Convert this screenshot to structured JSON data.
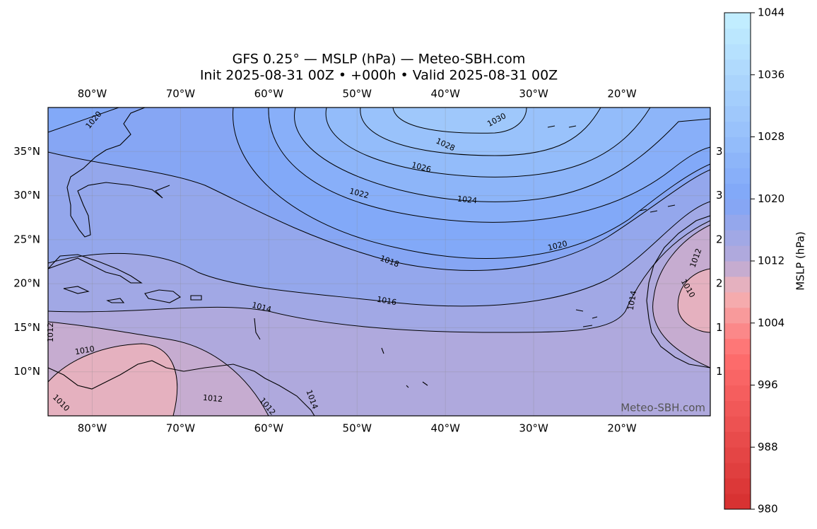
{
  "map": {
    "title": "GFS 0.25° — MSLP (hPa) — Meteo-SBH.com",
    "subtitle": "Init 2025-08-31 00Z • +000h • Valid 2025-08-31 00Z",
    "lonlim": [
      -85,
      -10
    ],
    "latlim": [
      5,
      40
    ],
    "lonticks": [
      {
        "value": -80,
        "label": "80°W"
      },
      {
        "value": -70,
        "label": "70°W"
      },
      {
        "value": -60,
        "label": "60°W"
      },
      {
        "value": -50,
        "label": "50°W"
      },
      {
        "value": -40,
        "label": "40°W"
      },
      {
        "value": -30,
        "label": "30°W"
      },
      {
        "value": -20,
        "label": "20°W"
      }
    ],
    "latticks": [
      {
        "value": 10,
        "label": "10°N"
      },
      {
        "value": 15,
        "label": "15°N"
      },
      {
        "value": 20,
        "label": "20°N"
      },
      {
        "value": 25,
        "label": "25°N"
      },
      {
        "value": 30,
        "label": "30°N"
      },
      {
        "value": 35,
        "label": "35°N"
      }
    ],
    "grid": true,
    "contour_levels": [
      1010,
      1012,
      1014,
      1016,
      1018,
      1020,
      1022,
      1024,
      1026,
      1028,
      1030
    ],
    "contour_labels": [
      1030,
      1028,
      1026,
      1022,
      1024,
      1020,
      1020,
      1018,
      1016,
      1014,
      1014,
      1012,
      1010,
      1010,
      1012,
      1012,
      1012,
      1010,
      1014
    ],
    "watermark": "Meteo-SBH.com",
    "colorbar": {
      "label": "MSLP (hPa)",
      "lim": [
        980,
        1044
      ],
      "ticks": [
        980,
        988,
        996,
        1004,
        1012,
        1020,
        1028,
        1036,
        1044
      ],
      "step": 2,
      "colormap": [
        [
          980,
          "#d62f2f"
        ],
        [
          1000,
          "#ff6e6e"
        ],
        [
          1008,
          "#f4b4b6"
        ],
        [
          1012,
          "#b6a9d9"
        ],
        [
          1020,
          "#7fa6f8"
        ],
        [
          1044,
          "#c4f0ff"
        ]
      ]
    }
  }
}
